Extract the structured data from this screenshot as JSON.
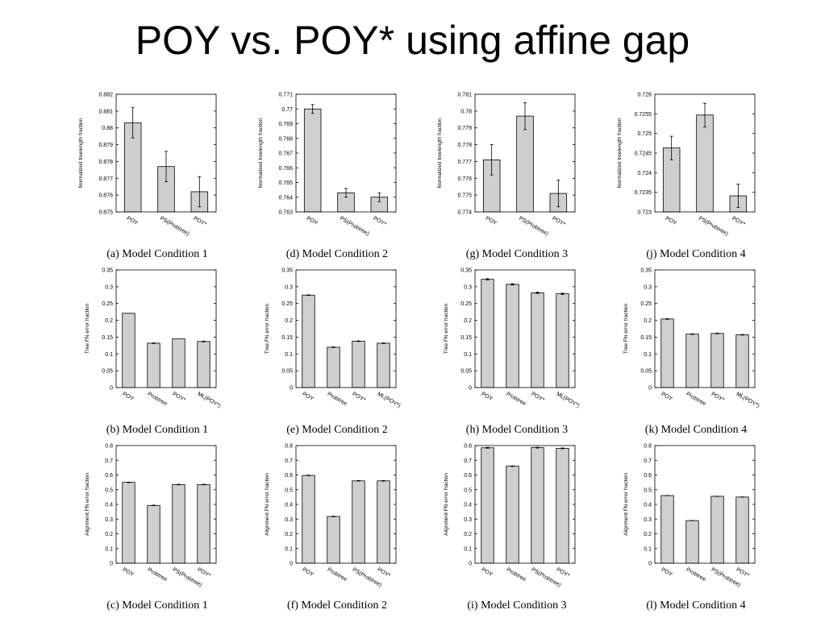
{
  "slide": {
    "title": "POY vs. POY* using affine gap"
  },
  "chart_data": [
    {
      "id": "a",
      "type": "bar",
      "caption": "(a) Model Condition 1",
      "ylabel": "Normalized treelength fraction",
      "categories": [
        "POY",
        "PS(Probtree)",
        "POY*"
      ],
      "values": [
        0.8803,
        0.8777,
        0.8762
      ],
      "errors": [
        0.0009,
        0.0009,
        0.0009
      ],
      "ylim": [
        0.875,
        0.882
      ],
      "yticks": [
        "0.875",
        "0.876",
        "0.877",
        "0.878",
        "0.879",
        "0.88",
        "0.881",
        "0.882"
      ]
    },
    {
      "id": "d",
      "type": "bar",
      "caption": "(d) Model Condition 2",
      "ylabel": "Normalized treelength fraction",
      "categories": [
        "POY",
        "PS(Probtree)",
        "POY*"
      ],
      "values": [
        0.77,
        0.7643,
        0.764
      ],
      "errors": [
        0.0003,
        0.0003,
        0.0003
      ],
      "ylim": [
        0.763,
        0.771
      ],
      "yticks": [
        "0.763",
        "0.764",
        "0.765",
        "0.766",
        "0.767",
        "0.768",
        "0.769",
        "0.77",
        "0.771"
      ]
    },
    {
      "id": "g",
      "type": "bar",
      "caption": "(g) Model Condition 3",
      "ylabel": "Normalized treelength fraction",
      "categories": [
        "POY",
        "PS(Probtree)",
        "POY*"
      ],
      "values": [
        0.7771,
        0.7797,
        0.7751
      ],
      "errors": [
        0.0009,
        0.0008,
        0.0008
      ],
      "ylim": [
        0.774,
        0.781
      ],
      "yticks": [
        "0.774",
        "0.775",
        "0.776",
        "0.777",
        "0.778",
        "0.779",
        "0.78",
        "0.781"
      ]
    },
    {
      "id": "j",
      "type": "bar",
      "caption": "(j) Model Condition 4",
      "ylabel": "Normalized treelength fraction",
      "categories": [
        "POY",
        "PS(Probtree)",
        "POY*"
      ],
      "values": [
        0.72463,
        0.72547,
        0.72341
      ],
      "errors": [
        0.0003,
        0.0003,
        0.0003
      ],
      "ylim": [
        0.723,
        0.726
      ],
      "yticks": [
        "0.723",
        "0.7235",
        "0.724",
        "0.7245",
        "0.725",
        "0.7255",
        "0.726"
      ]
    },
    {
      "id": "b",
      "type": "bar",
      "caption": "(b) Model Condition 1",
      "ylabel": "Tree FN error fraction",
      "categories": [
        "POY",
        "Probtree",
        "POY*",
        "ML(POY*)"
      ],
      "values": [
        0.221,
        0.132,
        0.145,
        0.137
      ],
      "errors": [
        0,
        0.001,
        0,
        0.001
      ],
      "ylim": [
        0,
        0.35
      ],
      "yticks": [
        "0",
        "0.05",
        "0.1",
        "0.15",
        "0.2",
        "0.25",
        "0.3",
        "0.35"
      ]
    },
    {
      "id": "e",
      "type": "bar",
      "caption": "(e) Model Condition 2",
      "ylabel": "Tree FN error fraction",
      "categories": [
        "POY",
        "Probtree",
        "POY*",
        "ML(POY*)"
      ],
      "values": [
        0.275,
        0.12,
        0.138,
        0.132
      ],
      "errors": [
        0.001,
        0.001,
        0.001,
        0.001
      ],
      "ylim": [
        0,
        0.35
      ],
      "yticks": [
        "0",
        "0.05",
        "0.1",
        "0.15",
        "0.2",
        "0.25",
        "0.3",
        "0.35"
      ]
    },
    {
      "id": "h",
      "type": "bar",
      "caption": "(h) Model Condition 3",
      "ylabel": "Tree FN error fraction",
      "categories": [
        "POY",
        "Probtree",
        "POY*",
        "ML(POY*)"
      ],
      "values": [
        0.322,
        0.307,
        0.282,
        0.279
      ],
      "errors": [
        0.002,
        0.002,
        0.002,
        0.002
      ],
      "ylim": [
        0,
        0.35
      ],
      "yticks": [
        "0",
        "0.05",
        "0.1",
        "0.15",
        "0.2",
        "0.25",
        "0.3",
        "0.35"
      ]
    },
    {
      "id": "k",
      "type": "bar",
      "caption": "(k) Model Condition 4",
      "ylabel": "Tree FN error fraction",
      "categories": [
        "POY",
        "Probtree",
        "POY*",
        "ML(POY*)"
      ],
      "values": [
        0.204,
        0.159,
        0.161,
        0.157
      ],
      "errors": [
        0.001,
        0.001,
        0.001,
        0.001
      ],
      "ylim": [
        0,
        0.35
      ],
      "yticks": [
        "0",
        "0.05",
        "0.1",
        "0.15",
        "0.2",
        "0.25",
        "0.3",
        "0.35"
      ]
    },
    {
      "id": "c",
      "type": "bar",
      "caption": "(c) Model Condition 1",
      "ylabel": "Alignment FN error fraction",
      "categories": [
        "POY",
        "Probtree",
        "PS(Probtree)",
        "POY*"
      ],
      "values": [
        0.55,
        0.393,
        0.535,
        0.535
      ],
      "errors": [
        0.002,
        0.002,
        0.002,
        0.002
      ],
      "ylim": [
        0,
        0.8
      ],
      "yticks": [
        "0",
        "0.1",
        "0.2",
        "0.3",
        "0.4",
        "0.5",
        "0.6",
        "0.7",
        "0.8"
      ]
    },
    {
      "id": "f",
      "type": "bar",
      "caption": "(f) Model Condition 2",
      "ylabel": "Alignment FN error fraction",
      "categories": [
        "POY",
        "Probtree",
        "PS(Probtree)",
        "POY*"
      ],
      "values": [
        0.597,
        0.318,
        0.56,
        0.56
      ],
      "errors": [
        0.002,
        0.002,
        0.002,
        0.002
      ],
      "ylim": [
        0,
        0.8
      ],
      "yticks": [
        "0",
        "0.1",
        "0.2",
        "0.3",
        "0.4",
        "0.5",
        "0.6",
        "0.7",
        "0.8"
      ]
    },
    {
      "id": "i",
      "type": "bar",
      "caption": "(i) Model Condition 3",
      "ylabel": "Alignment FN error fraction",
      "categories": [
        "POY",
        "Probtree",
        "PS(Probtree)",
        "POY*"
      ],
      "values": [
        0.785,
        0.66,
        0.786,
        0.781
      ],
      "errors": [
        0.003,
        0.002,
        0.003,
        0.003
      ],
      "ylim": [
        0,
        0.8
      ],
      "yticks": [
        "0",
        "0.1",
        "0.2",
        "0.3",
        "0.4",
        "0.5",
        "0.6",
        "0.7",
        "0.8"
      ]
    },
    {
      "id": "l",
      "type": "bar",
      "caption": "(l) Model Condition 4",
      "ylabel": "Alignment FN error fraction",
      "categories": [
        "POY",
        "Probtree",
        "PS(Probtree)",
        "POY*"
      ],
      "values": [
        0.46,
        0.29,
        0.455,
        0.45
      ],
      "errors": [
        0.001,
        0.001,
        0.001,
        0.001
      ],
      "ylim": [
        0,
        0.8
      ],
      "yticks": [
        "0",
        "0.1",
        "0.2",
        "0.3",
        "0.4",
        "0.5",
        "0.6",
        "0.7",
        "0.8"
      ]
    }
  ]
}
